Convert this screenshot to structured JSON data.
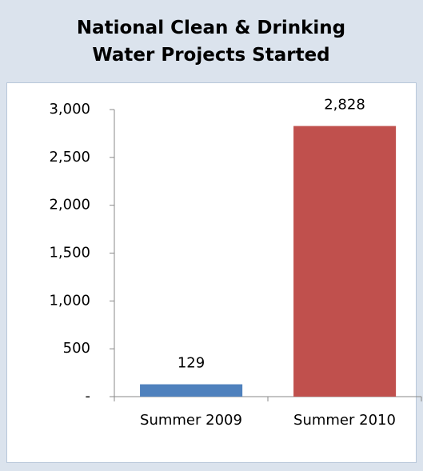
{
  "chart_data": {
    "type": "bar",
    "title": "National Clean & Drinking Water Projects Started",
    "categories": [
      "Summer 2009",
      "Summer 2010"
    ],
    "values": [
      129,
      2828
    ],
    "value_labels": [
      "129",
      "2,828"
    ],
    "colors": [
      "#4f81bd",
      "#c0504d"
    ],
    "ylim": [
      0,
      3000
    ],
    "yticks": [
      {
        "value": 0,
        "label": "-"
      },
      {
        "value": 500,
        "label": "500"
      },
      {
        "value": 1000,
        "label": "1,000"
      },
      {
        "value": 1500,
        "label": "1,500"
      },
      {
        "value": 2000,
        "label": "2,000"
      },
      {
        "value": 2500,
        "label": "2,500"
      },
      {
        "value": 3000,
        "label": "3,000"
      }
    ],
    "grid": false
  }
}
